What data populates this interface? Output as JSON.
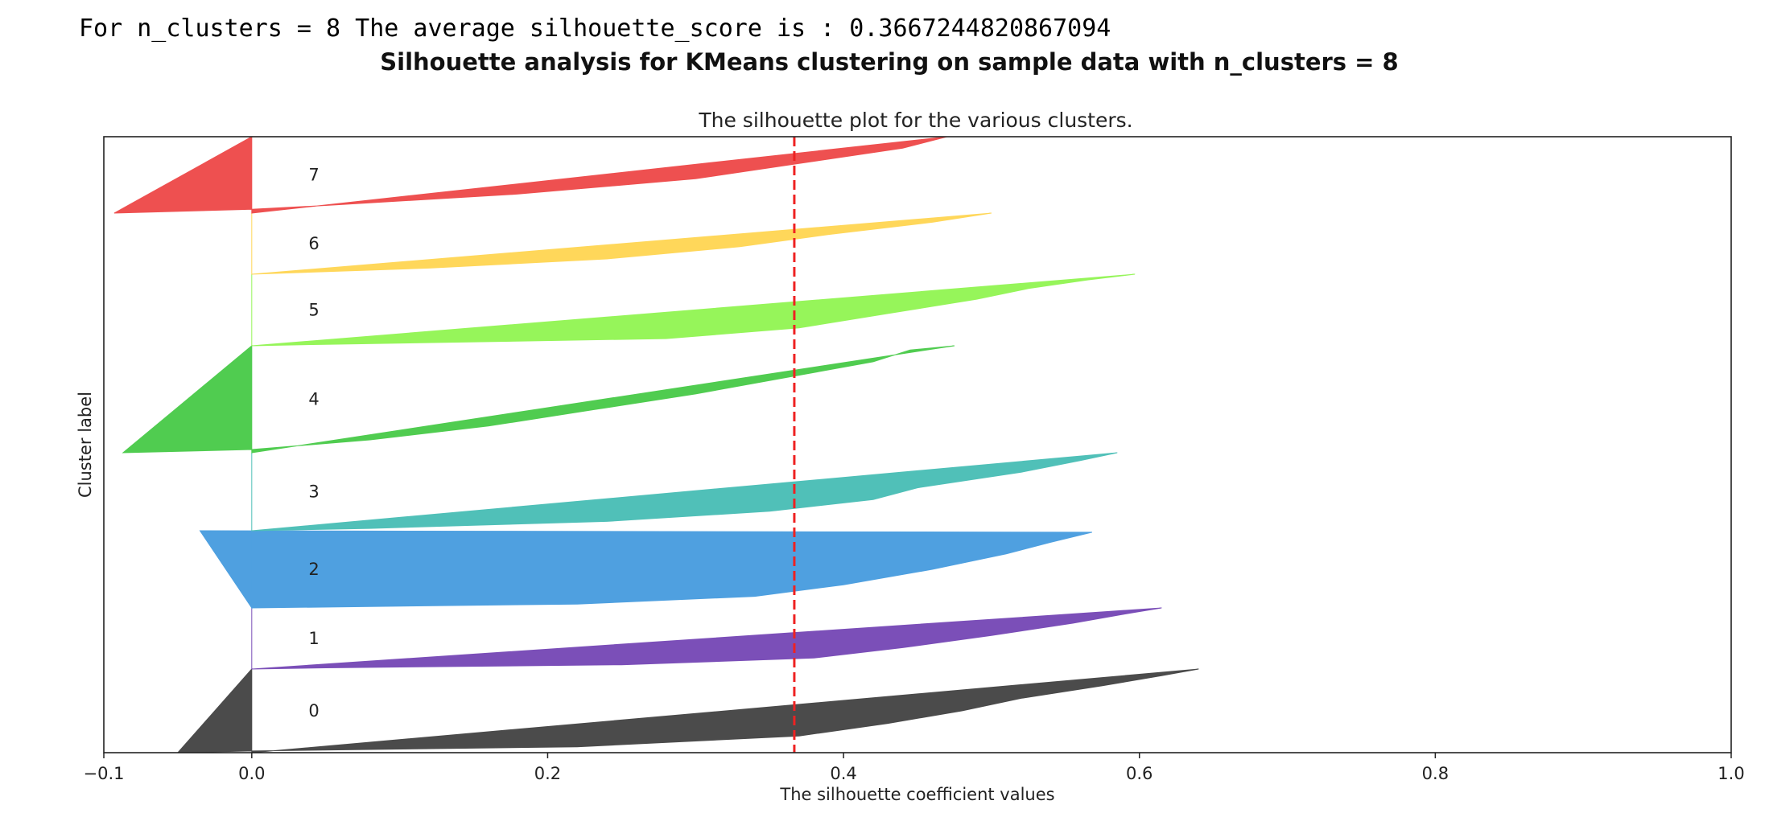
{
  "console_output": "For n_clusters = 8 The average silhouette_score is : 0.3667244820867094",
  "figure_title": "Silhouette analysis for KMeans clustering on sample data with n_clusters = 8",
  "chart_data": {
    "type": "area",
    "title": "The silhouette plot for the various clusters.",
    "xlabel": "The silhouette coefficient values",
    "ylabel": "Cluster label",
    "xlim": [
      -0.1,
      1.0
    ],
    "x_ticks": [
      "−0.1",
      "0.0",
      "0.2",
      "0.4",
      "0.6",
      "0.8",
      "1.0"
    ],
    "x_tick_values": [
      -0.1,
      0.0,
      0.2,
      0.4,
      0.6,
      0.8,
      1.0
    ],
    "grid": false,
    "average_line": {
      "value": 0.3667244820867094,
      "color": "#ee2222",
      "style": "dashed"
    },
    "clusters": [
      {
        "label": "0",
        "color": "#4b4b4b",
        "profile": [
          [
            0.0,
            0.64
          ],
          [
            0.08,
            0.615
          ],
          [
            0.2,
            0.575
          ],
          [
            0.35,
            0.52
          ],
          [
            0.5,
            0.48
          ],
          [
            0.65,
            0.43
          ],
          [
            0.8,
            0.37
          ],
          [
            0.93,
            0.22
          ],
          [
            0.98,
            0.0
          ],
          [
            1.0,
            -0.05
          ]
        ]
      },
      {
        "label": "1",
        "color": "#7b4fb8",
        "profile": [
          [
            0.0,
            0.615
          ],
          [
            0.1,
            0.59
          ],
          [
            0.25,
            0.555
          ],
          [
            0.45,
            0.5
          ],
          [
            0.65,
            0.44
          ],
          [
            0.82,
            0.38
          ],
          [
            0.93,
            0.25
          ],
          [
            0.98,
            0.05
          ],
          [
            1.0,
            0.0
          ]
        ]
      },
      {
        "label": "2",
        "color": "#4fa0e0",
        "profile": [
          [
            0.0,
            -0.035
          ],
          [
            0.02,
            0.568
          ],
          [
            0.15,
            0.54
          ],
          [
            0.3,
            0.51
          ],
          [
            0.5,
            0.46
          ],
          [
            0.7,
            0.4
          ],
          [
            0.85,
            0.34
          ],
          [
            0.95,
            0.22
          ],
          [
            1.0,
            0.0
          ]
        ]
      },
      {
        "label": "3",
        "color": "#50c0b8",
        "profile": [
          [
            0.0,
            0.585
          ],
          [
            0.1,
            0.56
          ],
          [
            0.25,
            0.52
          ],
          [
            0.45,
            0.45
          ],
          [
            0.6,
            0.42
          ],
          [
            0.75,
            0.35
          ],
          [
            0.88,
            0.24
          ],
          [
            0.97,
            0.08
          ],
          [
            1.0,
            0.0
          ]
        ]
      },
      {
        "label": "4",
        "color": "#50cc50",
        "profile": [
          [
            0.0,
            0.475
          ],
          [
            0.04,
            0.445
          ],
          [
            0.15,
            0.42
          ],
          [
            0.3,
            0.36
          ],
          [
            0.45,
            0.3
          ],
          [
            0.6,
            0.23
          ],
          [
            0.75,
            0.16
          ],
          [
            0.88,
            0.08
          ],
          [
            0.97,
            0.0
          ],
          [
            1.0,
            -0.087
          ]
        ]
      },
      {
        "label": "5",
        "color": "#96f55a",
        "profile": [
          [
            0.0,
            0.597
          ],
          [
            0.08,
            0.565
          ],
          [
            0.2,
            0.525
          ],
          [
            0.35,
            0.49
          ],
          [
            0.55,
            0.43
          ],
          [
            0.75,
            0.37
          ],
          [
            0.9,
            0.28
          ],
          [
            0.98,
            0.05
          ],
          [
            1.0,
            0.0
          ]
        ]
      },
      {
        "label": "6",
        "color": "#ffd75a",
        "profile": [
          [
            0.0,
            0.5
          ],
          [
            0.15,
            0.46
          ],
          [
            0.35,
            0.39
          ],
          [
            0.55,
            0.33
          ],
          [
            0.75,
            0.24
          ],
          [
            0.9,
            0.12
          ],
          [
            1.0,
            0.0
          ]
        ]
      },
      {
        "label": "7",
        "color": "#ee5050",
        "profile": [
          [
            0.0,
            0.47
          ],
          [
            0.15,
            0.44
          ],
          [
            0.35,
            0.37
          ],
          [
            0.55,
            0.3
          ],
          [
            0.75,
            0.18
          ],
          [
            0.9,
            0.05
          ],
          [
            0.95,
            0.0
          ],
          [
            1.0,
            -0.093
          ]
        ]
      }
    ]
  }
}
